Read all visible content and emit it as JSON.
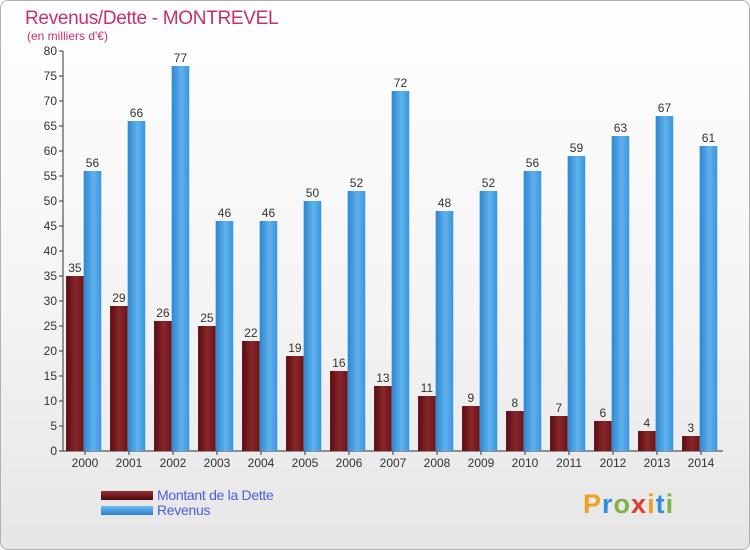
{
  "title": "Revenus/Dette - MONTREVEL",
  "subtitle": "(en milliers d'€)",
  "colors": {
    "dette": "#7a1a1f",
    "revenus": "#3a9ae0",
    "title": "#c5306b",
    "legend_text": "#4a5ee0"
  },
  "chart_data": {
    "type": "bar",
    "title": "Revenus/Dette - MONTREVEL",
    "ylabel": "(en milliers d'€)",
    "xlabel": "",
    "ylim": [
      0,
      80
    ],
    "yticks": [
      0,
      5,
      10,
      15,
      20,
      25,
      30,
      35,
      40,
      45,
      50,
      55,
      60,
      65,
      70,
      75,
      80
    ],
    "grid": false,
    "legend_position": "bottom-left",
    "categories": [
      "2000",
      "2001",
      "2002",
      "2003",
      "2004",
      "2005",
      "2006",
      "2007",
      "2008",
      "2009",
      "2010",
      "2011",
      "2012",
      "2013",
      "2014"
    ],
    "series": [
      {
        "name": "Montant de la Dette",
        "values": [
          35,
          29,
          26,
          25,
          22,
          19,
          16,
          13,
          11,
          9,
          8,
          7,
          6,
          4,
          3
        ]
      },
      {
        "name": "Revenus",
        "values": [
          56,
          66,
          77,
          46,
          46,
          50,
          52,
          72,
          48,
          52,
          56,
          59,
          63,
          67,
          61
        ]
      }
    ]
  },
  "legend": [
    {
      "label": "Montant de la Dette"
    },
    {
      "label": "Revenus"
    }
  ],
  "logo": {
    "letters": [
      "P",
      "r",
      "o",
      "x",
      "i",
      "t",
      "i"
    ]
  }
}
